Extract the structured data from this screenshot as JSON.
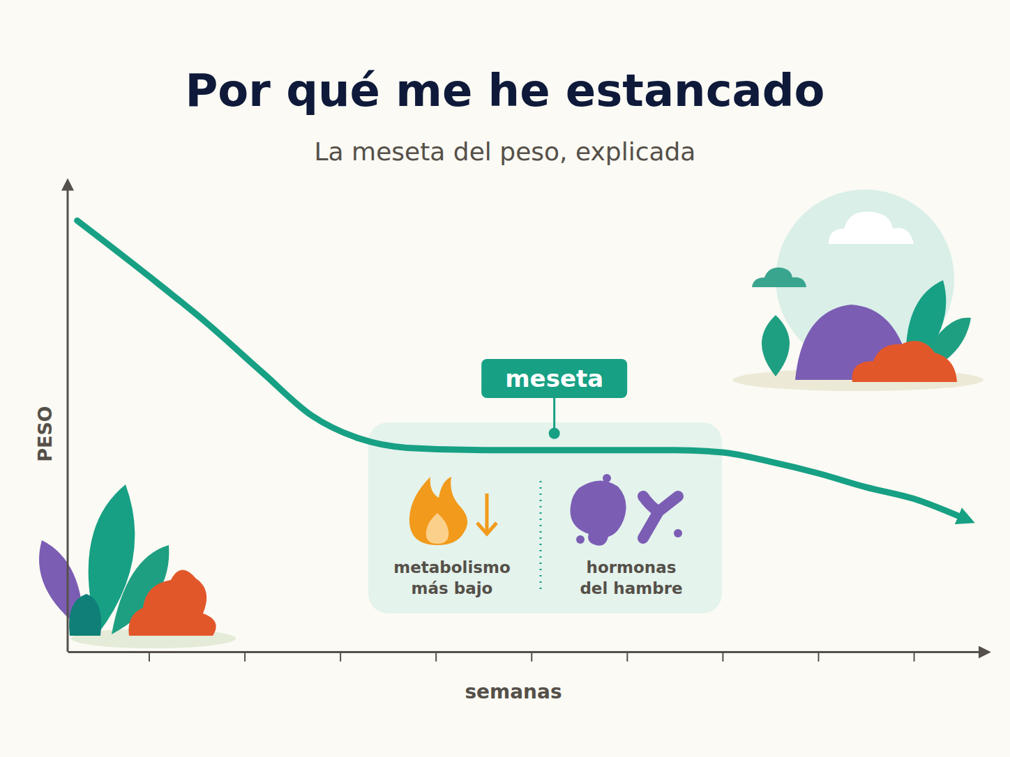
{
  "chart_data": {
    "type": "line",
    "title": "Por qué me he estancado",
    "subtitle": "La meseta del peso, explicada",
    "x_label": "semanas",
    "y_label": "PESO",
    "x": [
      0.25,
      1.0,
      1.6,
      2.2,
      2.7,
      3.2,
      3.7,
      4.5,
      5.5,
      6.5,
      7.0,
      7.5,
      8.0,
      8.5,
      9.0,
      9.5
    ],
    "values": [
      93,
      81,
      71,
      60,
      51,
      46,
      44,
      43.5,
      43.5,
      43.5,
      43,
      41,
      38.5,
      35.5,
      33,
      29
    ],
    "color": "#17a084",
    "xlim": [
      0.15,
      9.7
    ],
    "xticks": [
      1,
      2,
      3,
      4,
      5,
      6,
      7,
      8,
      9
    ],
    "ylim": [
      0,
      100
    ],
    "yticks": [],
    "tick_labels": false,
    "grid": false,
    "annotations": [
      {
        "text": "meseta",
        "x": 5.24,
        "y": 43.5
      }
    ],
    "annotation_details": [
      "metabolismo más bajo",
      "hormonas del hambre"
    ]
  }
}
